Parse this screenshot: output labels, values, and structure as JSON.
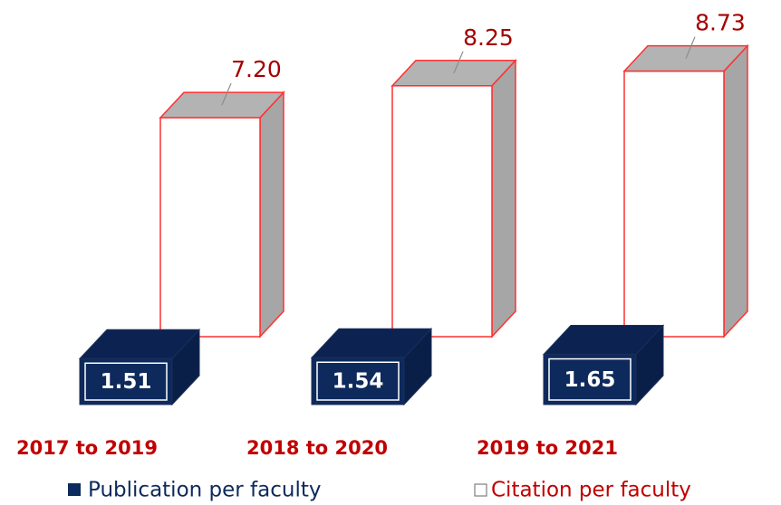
{
  "chart_data": {
    "type": "bar3d",
    "categories": [
      "2017 to 2019",
      "2018 to 2020",
      "2019 to 2021"
    ],
    "series": [
      {
        "name": "Publication per faculty",
        "color": "#0e2a5c",
        "values": [
          1.51,
          1.54,
          1.65
        ]
      },
      {
        "name": "Citation per faculty",
        "color": "#ffffff",
        "values": [
          7.2,
          8.25,
          8.73
        ],
        "value_labels": [
          "7.20",
          "8.25",
          "8.73"
        ]
      }
    ]
  }
}
